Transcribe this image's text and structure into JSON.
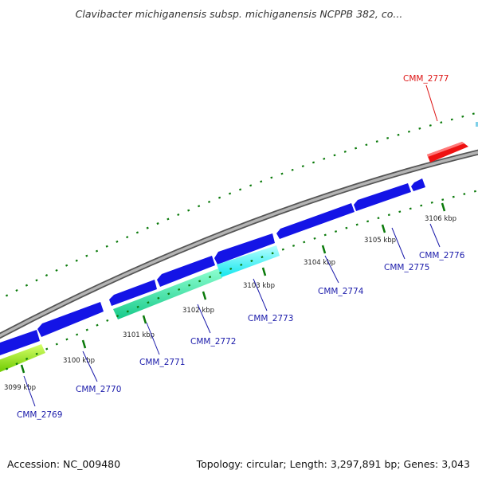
{
  "title": "Clavibacter michiganensis subsp. michiganensis NCPPB 382, co...",
  "accession": "Accession: NC_009480",
  "summary": "Topology: circular; Length: 3,297,891 bp; Genes: 3,043",
  "colors": {
    "backbone": "#8c8c8c",
    "tick": "#0a7a0a",
    "gene_default": "#1010e0",
    "highlight_red": "#ee1111",
    "label_blue": "#1a1aaa",
    "label_red": "#dd1111"
  },
  "scale_labels": [
    "3099 kbp",
    "3100 kbp",
    "3101 kbp",
    "3102 kbp",
    "3103 kbp",
    "3104 kbp",
    "3105 kbp",
    "3106 kbp"
  ],
  "gene_labels": [
    {
      "name": "CMM_2769",
      "color": "#1a1aaa"
    },
    {
      "name": "CMM_2770",
      "color": "#1a1aaa"
    },
    {
      "name": "CMM_2771",
      "color": "#1a1aaa"
    },
    {
      "name": "CMM_2772",
      "color": "#1a1aaa"
    },
    {
      "name": "CMM_2773",
      "color": "#1a1aaa"
    },
    {
      "name": "CMM_2774",
      "color": "#1a1aaa"
    },
    {
      "name": "CMM_2775",
      "color": "#1a1aaa"
    },
    {
      "name": "CMM_2776",
      "color": "#1a1aaa"
    },
    {
      "name": "CMM_2777",
      "color": "#dd1111"
    }
  ]
}
